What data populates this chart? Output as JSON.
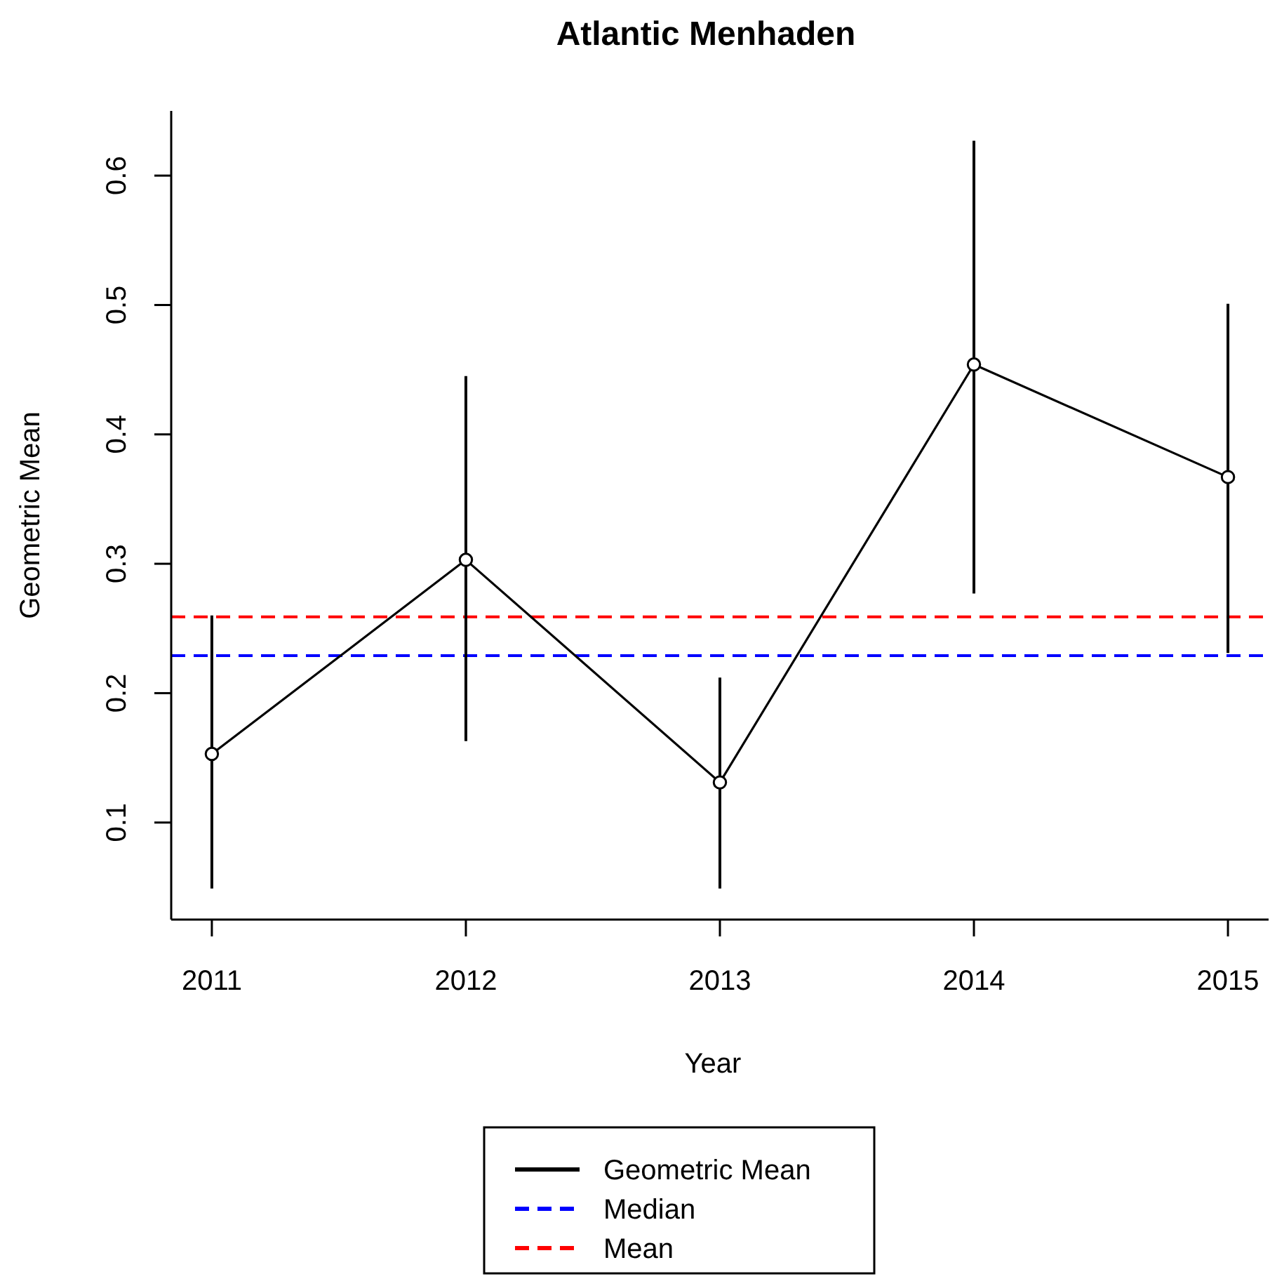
{
  "chart_data": {
    "type": "line",
    "title": "Atlantic Menhaden",
    "xlabel": "Year",
    "ylabel": "Geometric Mean",
    "x": [
      2011,
      2012,
      2013,
      2014,
      2015
    ],
    "series": [
      {
        "name": "Geometric Mean",
        "color": "#000000",
        "values": [
          0.153,
          0.303,
          0.131,
          0.454,
          0.367
        ],
        "errors": [
          [
            0.049,
            0.26
          ],
          [
            0.163,
            0.445
          ],
          [
            0.049,
            0.212
          ],
          [
            0.277,
            0.627
          ],
          [
            0.231,
            0.501
          ]
        ]
      }
    ],
    "xlim": [
      2010.84,
      2015.16
    ],
    "xticks": [
      2011,
      2012,
      2013,
      2014,
      2015
    ],
    "ylim": [
      0.025,
      0.65
    ],
    "yticks": [
      0.1,
      0.2,
      0.3,
      0.4,
      0.5,
      0.6
    ],
    "ref_lines": [
      {
        "axis": "y",
        "value": 0.229,
        "label": "Median",
        "color": "#0000ff",
        "line_style": "dashed"
      },
      {
        "axis": "y",
        "value": 0.259,
        "label": "Mean",
        "color": "#ff0000",
        "line_style": "dashed"
      }
    ],
    "marker": "circle",
    "line_style": "solid",
    "grid": false,
    "legend": "bottom"
  }
}
